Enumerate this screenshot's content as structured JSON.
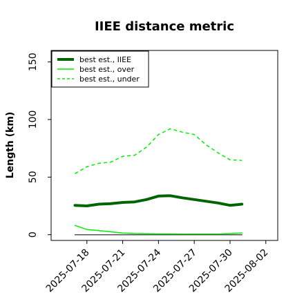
{
  "chart_data": {
    "type": "line",
    "title": "IIEE distance metric",
    "xlabel": "",
    "ylabel": "Length (km)",
    "x_tick_labels": [
      "2025-07-18",
      "2025-07-21",
      "2025-07-24",
      "2025-07-27",
      "2025-07-30",
      "2025-08-02"
    ],
    "x_ticks": [
      "2025-07-18",
      "2025-07-21",
      "2025-07-24",
      "2025-07-27",
      "2025-07-30",
      "2025-08-02"
    ],
    "xlim": [
      "2025-07-15",
      "2025-08-03"
    ],
    "y_ticks": [
      0,
      50,
      100,
      150
    ],
    "y_tick_labels": [
      "0",
      "50",
      "100",
      "150"
    ],
    "ylim": [
      -5,
      160
    ],
    "grid": false,
    "legend_position": "top-left",
    "x": [
      "2025-07-17",
      "2025-07-18",
      "2025-07-19",
      "2025-07-20",
      "2025-07-21",
      "2025-07-22",
      "2025-07-23",
      "2025-07-24",
      "2025-07-25",
      "2025-07-26",
      "2025-07-27",
      "2025-07-28",
      "2025-07-29",
      "2025-07-30",
      "2025-07-31"
    ],
    "series": [
      {
        "name": "best est., IIEE",
        "color": "#006400",
        "style": "solid",
        "width": "thick",
        "values": [
          25.5,
          25,
          26.5,
          27,
          28,
          28.5,
          30.5,
          33.5,
          33.8,
          32,
          30.5,
          29,
          27.5,
          25.5,
          26.5
        ]
      },
      {
        "name": "best est., over",
        "color": "#00ee00",
        "style": "solid",
        "width": "thin",
        "values": [
          8,
          4.5,
          3.5,
          2.5,
          1.5,
          1,
          0.8,
          0.7,
          0.7,
          0.6,
          0.6,
          0.5,
          0.6,
          1,
          1.5
        ]
      },
      {
        "name": "best est., under",
        "color": "#00ee00",
        "style": "dashed",
        "width": "thin",
        "values": [
          53,
          59,
          62,
          63,
          68,
          69,
          76,
          87,
          92,
          89,
          87,
          78,
          71,
          65,
          64.5
        ]
      },
      {
        "name": "",
        "color": "#555555",
        "style": "solid",
        "width": "thin",
        "values": [
          0,
          0,
          0,
          0,
          0,
          0,
          0,
          0,
          0,
          0,
          0,
          0,
          0,
          0,
          0
        ]
      }
    ]
  }
}
